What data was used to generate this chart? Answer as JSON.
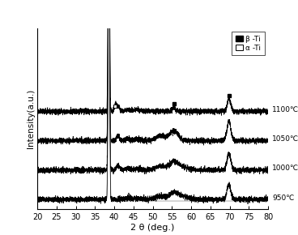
{
  "title": "",
  "xlabel": "2 θ (deg.)",
  "ylabel": "Intensity(a.u.)",
  "xlim": [
    20,
    80
  ],
  "x_ticks": [
    20,
    25,
    30,
    35,
    40,
    45,
    50,
    55,
    60,
    65,
    70,
    75,
    80
  ],
  "temperatures": [
    "950℃",
    "1000℃",
    "1050℃",
    "1100℃"
  ],
  "offsets": [
    0.0,
    0.18,
    0.36,
    0.54
  ],
  "peak_positions": {
    "beta_main": 38.6,
    "beta_secondary1": 55.5,
    "beta_secondary2": 69.8,
    "alpha_small": 40.3
  },
  "noise_amplitude": 0.008,
  "background_color": "#ffffff",
  "line_color": "#000000",
  "legend_beta_label": "β -Ti",
  "legend_alpha_label": "α -Ti",
  "figsize": [
    3.68,
    2.9
  ],
  "dpi": 100
}
